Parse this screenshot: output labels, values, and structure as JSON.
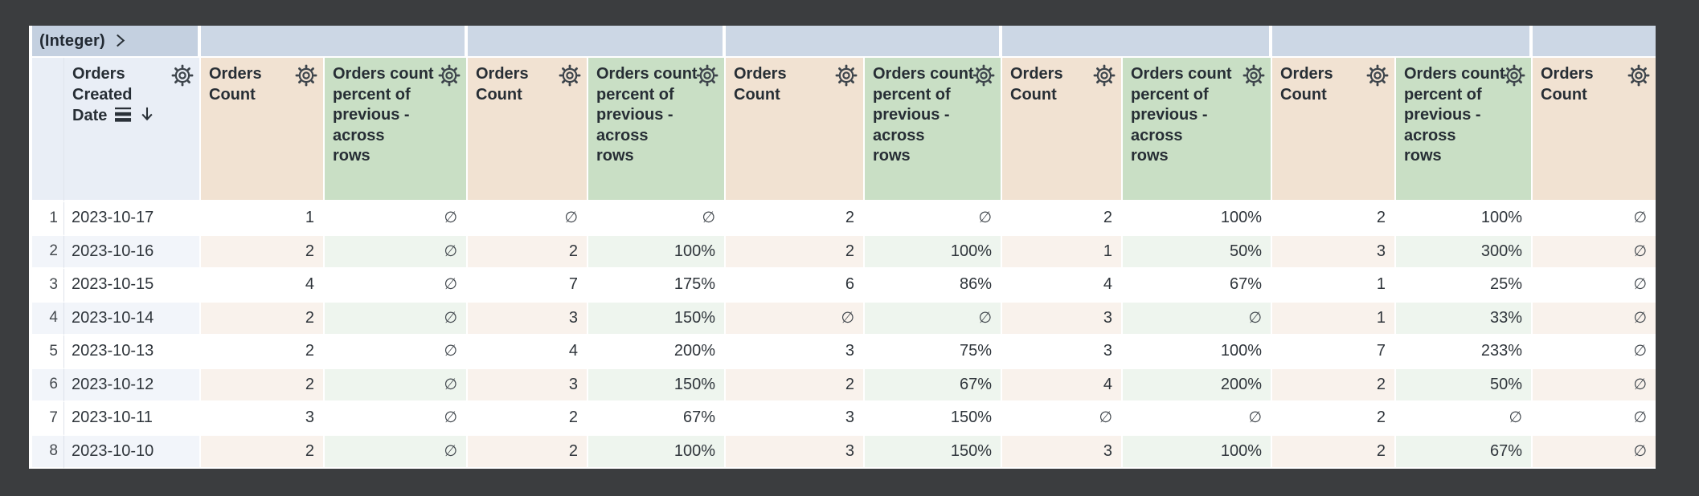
{
  "window": {
    "description": "Pivoted results table with collapsed pivot dimension",
    "frame_background": "#3b3d3f"
  },
  "group_header": {
    "pivot_label": "(Integer)",
    "chevron_icon": "chevron-right-icon",
    "empty_group_cells": 6
  },
  "table": {
    "null_symbol": "∅",
    "columns": [
      {
        "key": "row_index",
        "kind": "index",
        "label": ""
      },
      {
        "key": "orders_created_date",
        "kind": "date",
        "label": "Orders Created Date",
        "label_display": "Orders\nCreated\nDate",
        "sort": "descending"
      },
      {
        "key": "orders_count_1",
        "kind": "count",
        "label": "Orders Count",
        "label_display": "Orders\nCount"
      },
      {
        "key": "orders_count_percent_previous_1",
        "kind": "percent",
        "label": "Orders count percent of previous - across rows",
        "label_display": "Orders count\npercent of\nprevious -\nacross\nrows"
      },
      {
        "key": "orders_count_2",
        "kind": "count",
        "label": "Orders Count",
        "label_display": "Orders\nCount"
      },
      {
        "key": "orders_count_percent_previous_2",
        "kind": "percent",
        "label": "Orders count percent of previous - across rows",
        "label_display": "Orders count\npercent of\nprevious -\nacross\nrows"
      },
      {
        "key": "orders_count_3",
        "kind": "count",
        "label": "Orders Count",
        "label_display": "Orders\nCount"
      },
      {
        "key": "orders_count_percent_previous_3",
        "kind": "percent",
        "label": "Orders count percent of previous - across rows",
        "label_display": "Orders count\npercent of\nprevious -\nacross\nrows"
      },
      {
        "key": "orders_count_4",
        "kind": "count",
        "label": "Orders Count",
        "label_display": "Orders\nCount"
      },
      {
        "key": "orders_count_percent_previous_4",
        "kind": "percent",
        "label": "Orders count percent of previous - across rows",
        "label_display": "Orders count\npercent of\nprevious -\nacross\nrows"
      },
      {
        "key": "orders_count_5",
        "kind": "count",
        "label": "Orders Count",
        "label_display": "Orders\nCount"
      },
      {
        "key": "orders_count_percent_previous_5",
        "kind": "percent",
        "label": "Orders count percent of previous - across rows",
        "label_display": "Orders count\npercent of\nprevious -\nacross\nrows"
      },
      {
        "key": "orders_count_6",
        "kind": "count",
        "label": "Orders Count",
        "label_display": "Orders\nCount"
      }
    ],
    "rows": [
      {
        "num": "1",
        "date": "2023-10-17",
        "values": [
          "1",
          "∅",
          "∅",
          "∅",
          "2",
          "∅",
          "2",
          "100%",
          "2",
          "100%",
          "∅"
        ]
      },
      {
        "num": "2",
        "date": "2023-10-16",
        "values": [
          "2",
          "∅",
          "2",
          "100%",
          "2",
          "100%",
          "1",
          "50%",
          "3",
          "300%",
          "∅"
        ]
      },
      {
        "num": "3",
        "date": "2023-10-15",
        "values": [
          "4",
          "∅",
          "7",
          "175%",
          "6",
          "86%",
          "4",
          "67%",
          "1",
          "25%",
          "∅"
        ]
      },
      {
        "num": "4",
        "date": "2023-10-14",
        "values": [
          "2",
          "∅",
          "3",
          "150%",
          "∅",
          "∅",
          "3",
          "∅",
          "1",
          "33%",
          "∅"
        ]
      },
      {
        "num": "5",
        "date": "2023-10-13",
        "values": [
          "2",
          "∅",
          "4",
          "200%",
          "3",
          "75%",
          "3",
          "100%",
          "7",
          "233%",
          "∅"
        ]
      },
      {
        "num": "6",
        "date": "2023-10-12",
        "values": [
          "2",
          "∅",
          "3",
          "150%",
          "2",
          "67%",
          "4",
          "200%",
          "2",
          "50%",
          "∅"
        ]
      },
      {
        "num": "7",
        "date": "2023-10-11",
        "values": [
          "3",
          "∅",
          "2",
          "67%",
          "3",
          "150%",
          "∅",
          "∅",
          "2",
          "∅",
          "∅"
        ]
      },
      {
        "num": "8",
        "date": "2023-10-10",
        "values": [
          "2",
          "∅",
          "2",
          "100%",
          "3",
          "150%",
          "3",
          "100%",
          "2",
          "67%",
          "∅"
        ]
      }
    ]
  },
  "icons": {
    "gear": "column-settings-gear",
    "table_rows": "table-rows",
    "sort": "sort-descending-arrow",
    "chevron": "chevron-right"
  },
  "colors": {
    "frame_background": "#3b3d3f",
    "pivot_cell_blue": "#c4d0e0",
    "group_strip_blue": "#ccd7e5",
    "header_blue": "#e9eef6",
    "header_tan": "#f1e2d2",
    "header_green": "#c9dfc5",
    "row_tint_blue": "#f2f5fa",
    "row_tint_tan": "#f9f2ec",
    "row_tint_green": "#eef5ee",
    "text_dark": "#272e35"
  }
}
